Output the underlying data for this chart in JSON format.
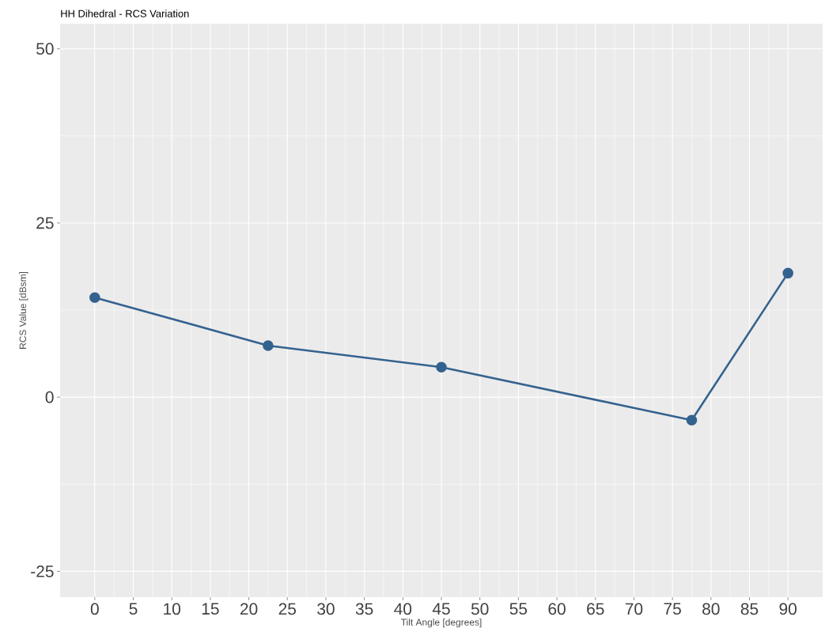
{
  "chart_data": {
    "type": "line",
    "title": "HH Dihedral - RCS Variation",
    "xlabel": "Tilt Angle [degrees]",
    "ylabel": "RCS Value [dBsm]",
    "x": [
      0,
      22.5,
      45,
      77.5,
      90
    ],
    "series": [
      {
        "color": "#34628f",
        "values": [
          14.3,
          7.4,
          4.3,
          -3.3,
          17.8
        ]
      }
    ],
    "xlim": [
      -4.5,
      94.5
    ],
    "ylim": [
      -28.7,
      53.6
    ],
    "xticks": [
      0,
      5,
      10,
      15,
      20,
      25,
      30,
      35,
      40,
      45,
      50,
      55,
      60,
      65,
      70,
      75,
      80,
      85,
      90
    ],
    "yticks": [
      -25,
      0,
      25,
      50
    ],
    "grid": true,
    "marker": "circle",
    "line_style": "solid"
  }
}
